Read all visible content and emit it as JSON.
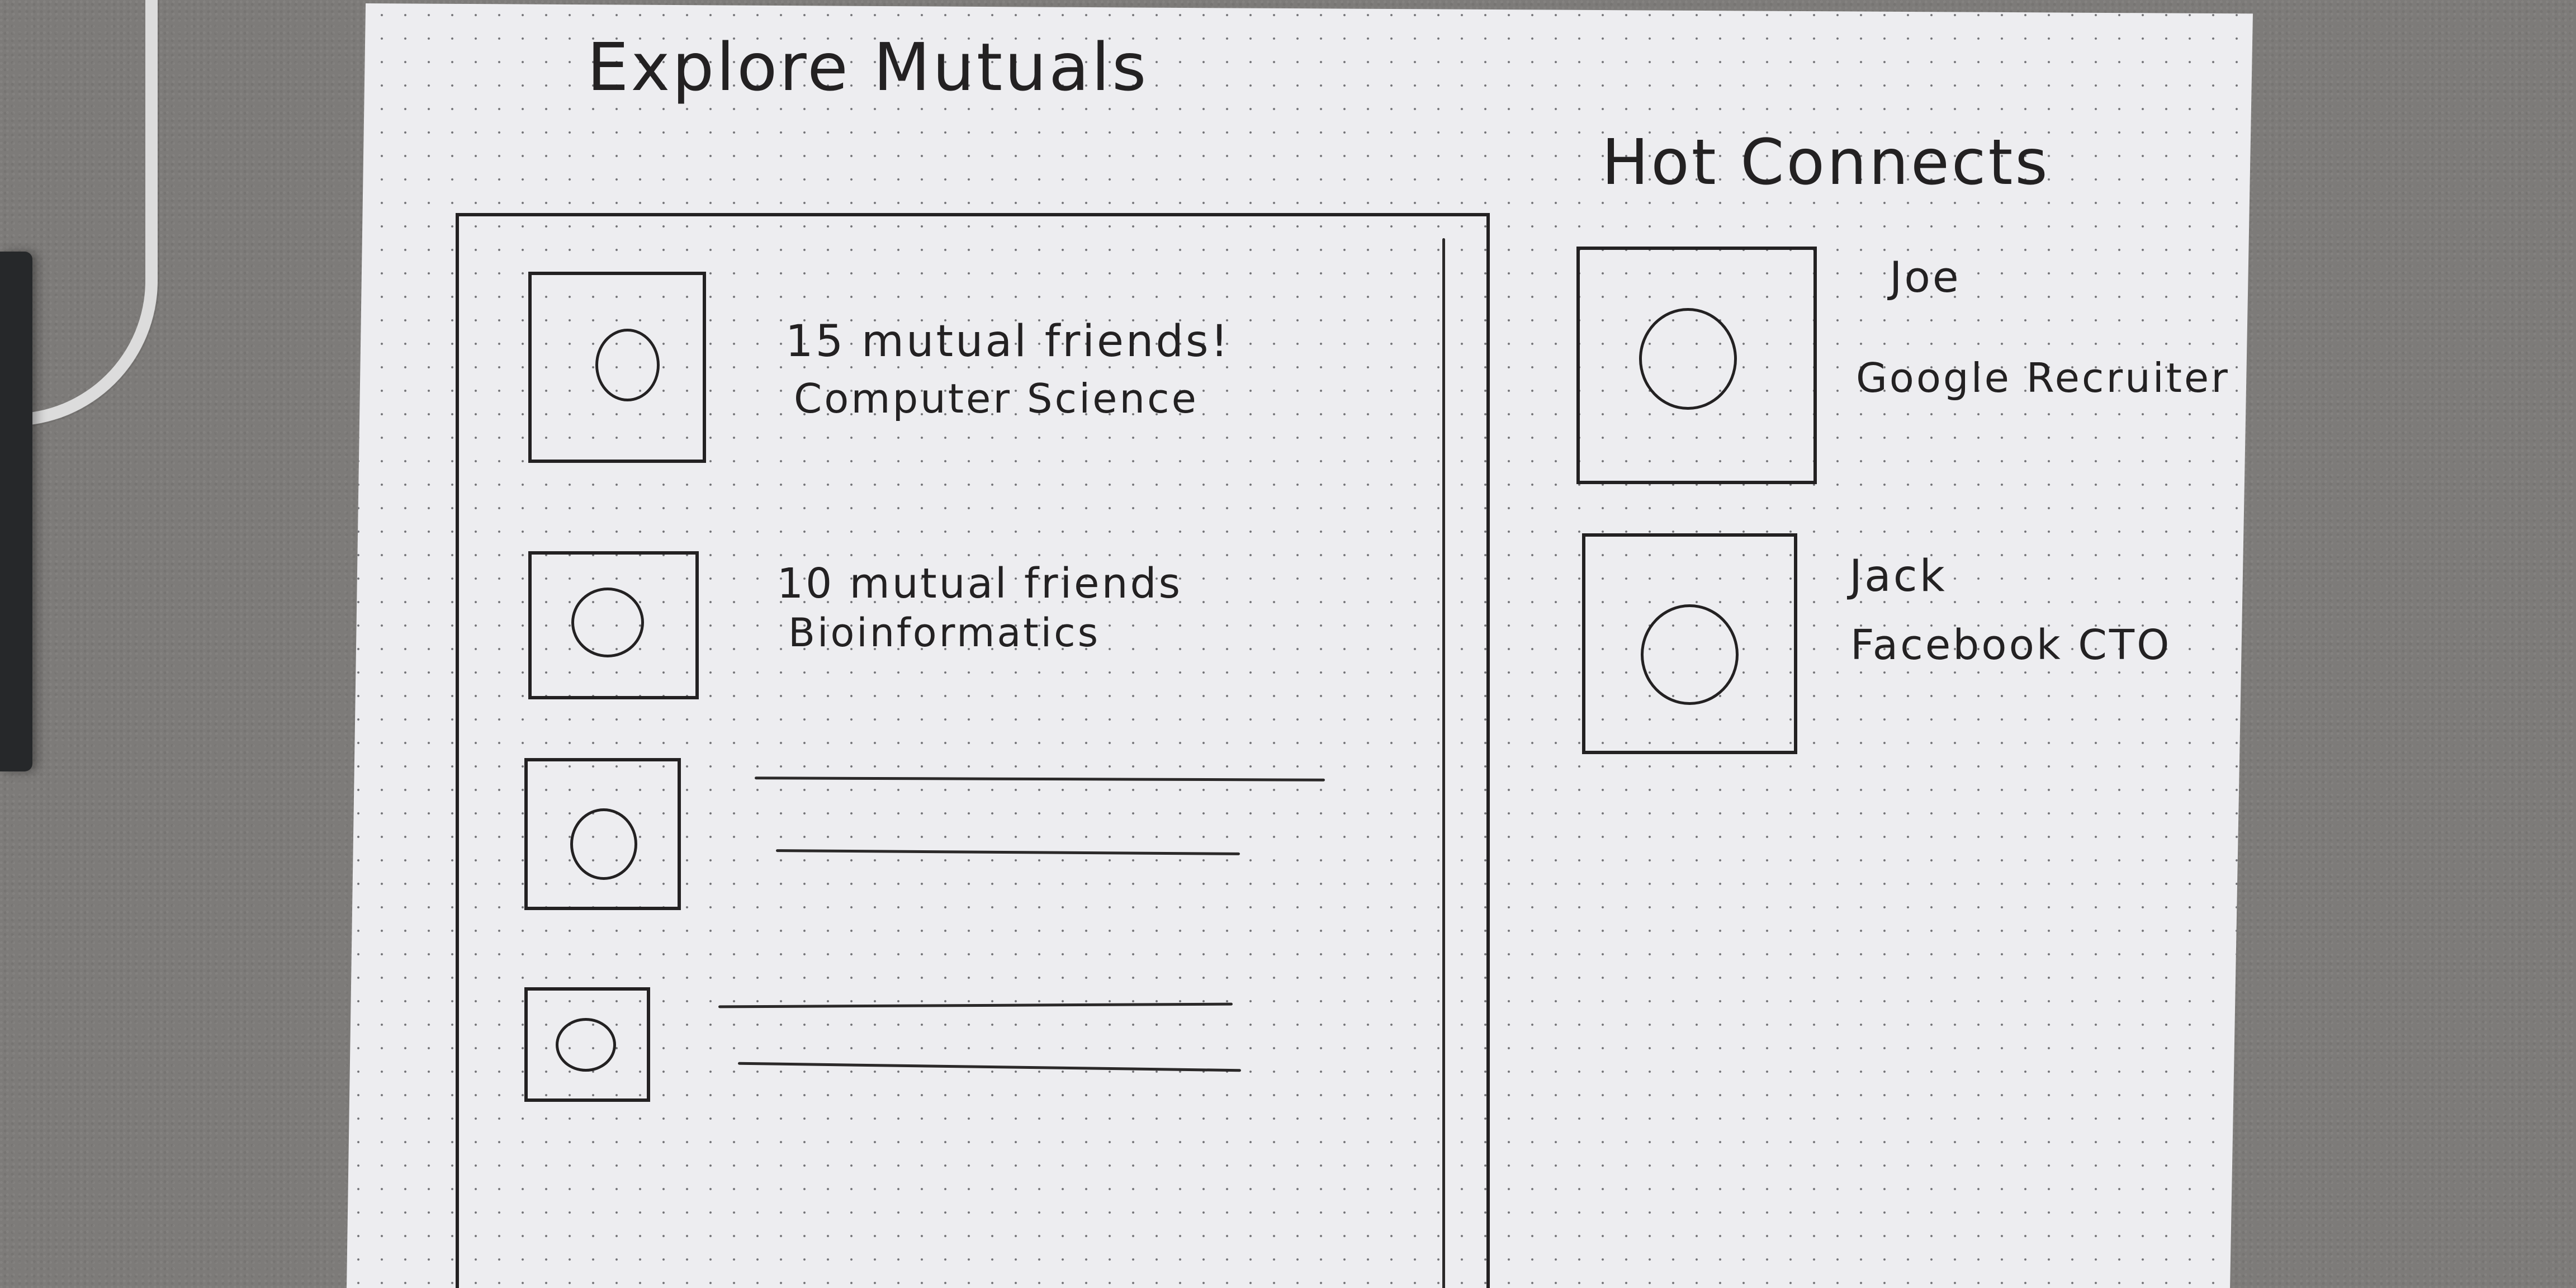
{
  "page": {
    "title": "Explore Mutuals"
  },
  "mutuals": {
    "items": [
      {
        "line1": "15 mutual friends!",
        "line2": "Computer Science"
      },
      {
        "line1": "10 mutual friends",
        "line2": "Bioinformatics"
      },
      {
        "line1": "",
        "line2": ""
      },
      {
        "line1": "",
        "line2": ""
      }
    ]
  },
  "hot_connects": {
    "title": "Hot Connects",
    "items": [
      {
        "name": "Joe",
        "role": "Google Recruiter"
      },
      {
        "name": "Jack",
        "role": "Facebook CTO"
      }
    ]
  },
  "icons": {
    "avatar": "avatar-placeholder-icon"
  },
  "colors": {
    "ink": "#232122",
    "paper": "#ededf0",
    "desk": "#7d7b79"
  }
}
